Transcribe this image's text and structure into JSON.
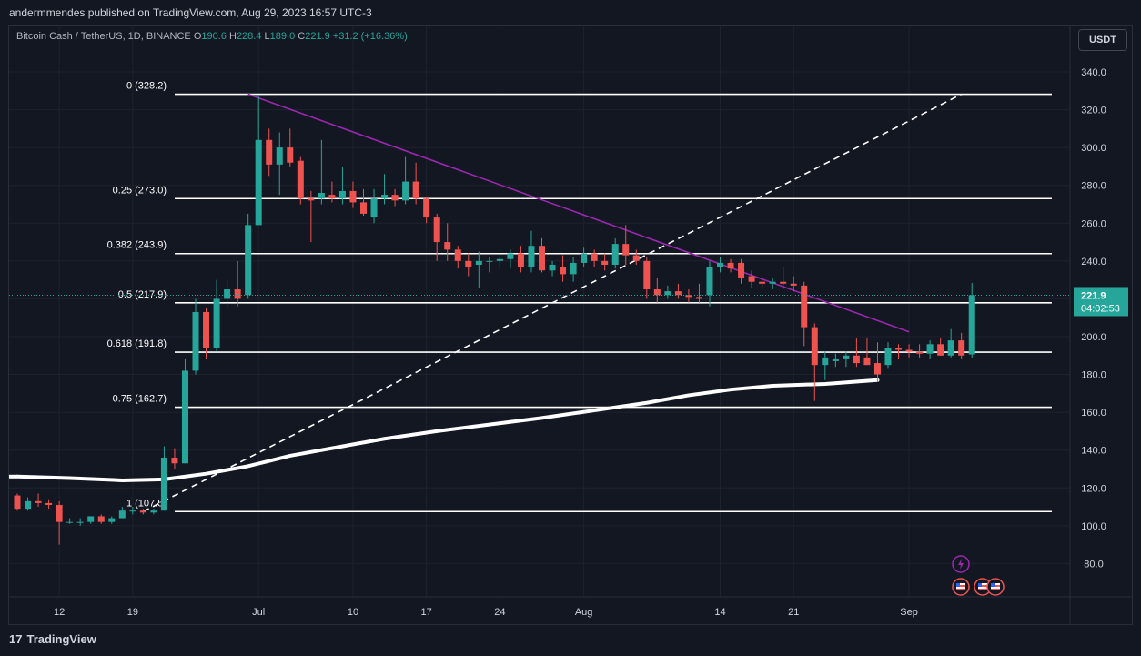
{
  "header": {
    "published": "andermmendes published on TradingView.com, Aug 29, 2023 16:57 UTC-3"
  },
  "legend": {
    "symbol": "Bitcoin Cash / TetherUS, 1D, BINANCE",
    "o_label": "O",
    "o": "190.6",
    "h_label": "H",
    "h": "228.4",
    "l_label": "L",
    "l": "189.0",
    "c_label": "C",
    "c": "221.9",
    "change": "+31.2 (+16.36%)"
  },
  "currency_button": "USDT",
  "footer": {
    "brand": "TradingView",
    "logo_text": "17"
  },
  "colors": {
    "background": "#131722",
    "up": "#26a69a",
    "down": "#ef5350",
    "fib_lines": "#ffffff",
    "trendline": "#9c27b0",
    "moving_average": "#ffffff",
    "price_tag": "#26a69a"
  },
  "chart_data": {
    "type": "candlestick",
    "y_axis": {
      "ticks": [
        80,
        100,
        120,
        140,
        160,
        180,
        200,
        220,
        240,
        260,
        280,
        300,
        320,
        340
      ],
      "tick_labels": [
        "80.0",
        "100.0",
        "120.0",
        "140.0",
        "160.0",
        "180.0",
        "200.0",
        "220.0",
        "240.0",
        "260.0",
        "280.0",
        "300.0",
        "320.0",
        "340.0"
      ]
    },
    "x_axis": {
      "ticks": [
        {
          "date": "2023-06-12",
          "label": "12"
        },
        {
          "date": "2023-06-19",
          "label": "19"
        },
        {
          "date": "2023-07-01",
          "label": "Jul"
        },
        {
          "date": "2023-07-10",
          "label": "10"
        },
        {
          "date": "2023-07-17",
          "label": "17"
        },
        {
          "date": "2023-07-24",
          "label": "24"
        },
        {
          "date": "2023-08-01",
          "label": "Aug"
        },
        {
          "date": "2023-08-14",
          "label": "14"
        },
        {
          "date": "2023-08-21",
          "label": "21"
        },
        {
          "date": "2023-09-01",
          "label": "Sep"
        }
      ]
    },
    "last_price": {
      "value": 221.9,
      "label": "221.9",
      "countdown": "04:02:53"
    },
    "fib_levels": [
      {
        "ratio": 0,
        "price": 328.2,
        "label": "0 (328.2)"
      },
      {
        "ratio": 0.25,
        "price": 273.0,
        "label": "0.25 (273.0)"
      },
      {
        "ratio": 0.382,
        "price": 243.9,
        "label": "0.382 (243.9)"
      },
      {
        "ratio": 0.5,
        "price": 217.9,
        "label": "0.5 (217.9)"
      },
      {
        "ratio": 0.618,
        "price": 191.8,
        "label": "0.618 (191.8)"
      },
      {
        "ratio": 0.75,
        "price": 162.7,
        "label": "0.75 (162.7)"
      },
      {
        "ratio": 1,
        "price": 107.5,
        "label": "1 (107.5)"
      }
    ],
    "trendline": {
      "start": {
        "date": "2023-06-30",
        "price": 328.2
      },
      "end": {
        "date": "2023-09-01",
        "price": 202.5
      }
    },
    "diagonal_dashed": {
      "start": {
        "date": "2023-06-20",
        "price": 107.5
      },
      "end": {
        "date": "2023-09-06",
        "price": 328.2
      }
    },
    "moving_average": [
      {
        "date": "2023-06-08",
        "value": 126
      },
      {
        "date": "2023-06-13",
        "value": 125.2
      },
      {
        "date": "2023-06-18",
        "value": 124.0
      },
      {
        "date": "2023-06-22",
        "value": 124.5
      },
      {
        "date": "2023-06-26",
        "value": 127.5
      },
      {
        "date": "2023-06-30",
        "value": 131.5
      },
      {
        "date": "2023-07-04",
        "value": 137.0
      },
      {
        "date": "2023-07-08",
        "value": 141.0
      },
      {
        "date": "2023-07-13",
        "value": 146.0
      },
      {
        "date": "2023-07-18",
        "value": 150.0
      },
      {
        "date": "2023-07-23",
        "value": 153.5
      },
      {
        "date": "2023-07-28",
        "value": 157.0
      },
      {
        "date": "2023-08-02",
        "value": 161.0
      },
      {
        "date": "2023-08-07",
        "value": 165.0
      },
      {
        "date": "2023-08-11",
        "value": 169.0
      },
      {
        "date": "2023-08-15",
        "value": 172.0
      },
      {
        "date": "2023-08-19",
        "value": 174.0
      },
      {
        "date": "2023-08-24",
        "value": 175.0
      },
      {
        "date": "2023-08-29",
        "value": 177.0
      }
    ],
    "candles": [
      {
        "date": "2023-06-08",
        "o": 116,
        "h": 117,
        "l": 108,
        "c": 109
      },
      {
        "date": "2023-06-09",
        "o": 109,
        "h": 115,
        "l": 108,
        "c": 113
      },
      {
        "date": "2023-06-10",
        "o": 113,
        "h": 117,
        "l": 110,
        "c": 112
      },
      {
        "date": "2023-06-11",
        "o": 112,
        "h": 114,
        "l": 109,
        "c": 111
      },
      {
        "date": "2023-06-12",
        "o": 111,
        "h": 113,
        "l": 90,
        "c": 102
      },
      {
        "date": "2023-06-13",
        "o": 102,
        "h": 104,
        "l": 101,
        "c": 102
      },
      {
        "date": "2023-06-14",
        "o": 102,
        "h": 104,
        "l": 100,
        "c": 102
      },
      {
        "date": "2023-06-15",
        "o": 102,
        "h": 105,
        "l": 101,
        "c": 105
      },
      {
        "date": "2023-06-16",
        "o": 105,
        "h": 106,
        "l": 101,
        "c": 102
      },
      {
        "date": "2023-06-17",
        "o": 102,
        "h": 105,
        "l": 101,
        "c": 104
      },
      {
        "date": "2023-06-18",
        "o": 104,
        "h": 110,
        "l": 104,
        "c": 108
      },
      {
        "date": "2023-06-19",
        "o": 108,
        "h": 110,
        "l": 106,
        "c": 108
      },
      {
        "date": "2023-06-20",
        "o": 108,
        "h": 109,
        "l": 106,
        "c": 107
      },
      {
        "date": "2023-06-21",
        "o": 107,
        "h": 109,
        "l": 106,
        "c": 108
      },
      {
        "date": "2023-06-22",
        "o": 108,
        "h": 142,
        "l": 108,
        "c": 136
      },
      {
        "date": "2023-06-23",
        "o": 136,
        "h": 141,
        "l": 130,
        "c": 133
      },
      {
        "date": "2023-06-24",
        "o": 133,
        "h": 188,
        "l": 133,
        "c": 182
      },
      {
        "date": "2023-06-25",
        "o": 182,
        "h": 220,
        "l": 180,
        "c": 213
      },
      {
        "date": "2023-06-26",
        "o": 213,
        "h": 215,
        "l": 188,
        "c": 194
      },
      {
        "date": "2023-06-27",
        "o": 194,
        "h": 230,
        "l": 192,
        "c": 220
      },
      {
        "date": "2023-06-28",
        "o": 220,
        "h": 230,
        "l": 215,
        "c": 225
      },
      {
        "date": "2023-06-29",
        "o": 225,
        "h": 240,
        "l": 216,
        "c": 220
      },
      {
        "date": "2023-06-30",
        "o": 222,
        "h": 265,
        "l": 220,
        "c": 259
      },
      {
        "date": "2023-07-01",
        "o": 259,
        "h": 328,
        "l": 259,
        "c": 304
      },
      {
        "date": "2023-07-02",
        "o": 304,
        "h": 310,
        "l": 285,
        "c": 291
      },
      {
        "date": "2023-07-03",
        "o": 291,
        "h": 308,
        "l": 275,
        "c": 300
      },
      {
        "date": "2023-07-04",
        "o": 300,
        "h": 310,
        "l": 290,
        "c": 292
      },
      {
        "date": "2023-07-05",
        "o": 293,
        "h": 295,
        "l": 270,
        "c": 273
      },
      {
        "date": "2023-07-06",
        "o": 273,
        "h": 277,
        "l": 250,
        "c": 272
      },
      {
        "date": "2023-07-07",
        "o": 273,
        "h": 304,
        "l": 270,
        "c": 276
      },
      {
        "date": "2023-07-08",
        "o": 275,
        "h": 282,
        "l": 271,
        "c": 273
      },
      {
        "date": "2023-07-09",
        "o": 273,
        "h": 290,
        "l": 270,
        "c": 277
      },
      {
        "date": "2023-07-10",
        "o": 277,
        "h": 282,
        "l": 268,
        "c": 271
      },
      {
        "date": "2023-07-11",
        "o": 271,
        "h": 278,
        "l": 264,
        "c": 265
      },
      {
        "date": "2023-07-12",
        "o": 263,
        "h": 278,
        "l": 260,
        "c": 273
      },
      {
        "date": "2023-07-13",
        "o": 273,
        "h": 286,
        "l": 270,
        "c": 275
      },
      {
        "date": "2023-07-14",
        "o": 275,
        "h": 278,
        "l": 269,
        "c": 272
      },
      {
        "date": "2023-07-15",
        "o": 272,
        "h": 295,
        "l": 270,
        "c": 282
      },
      {
        "date": "2023-07-16",
        "o": 282,
        "h": 292,
        "l": 270,
        "c": 273
      },
      {
        "date": "2023-07-17",
        "o": 273,
        "h": 274,
        "l": 260,
        "c": 263
      },
      {
        "date": "2023-07-18",
        "o": 263,
        "h": 265,
        "l": 240,
        "c": 250
      },
      {
        "date": "2023-07-19",
        "o": 250,
        "h": 260,
        "l": 240,
        "c": 246
      },
      {
        "date": "2023-07-20",
        "o": 246,
        "h": 248,
        "l": 236,
        "c": 240
      },
      {
        "date": "2023-07-21",
        "o": 240,
        "h": 244,
        "l": 232,
        "c": 237
      },
      {
        "date": "2023-07-22",
        "o": 238,
        "h": 245,
        "l": 226,
        "c": 240
      },
      {
        "date": "2023-07-23",
        "o": 240,
        "h": 242,
        "l": 234,
        "c": 240
      },
      {
        "date": "2023-07-24",
        "o": 240,
        "h": 244,
        "l": 236,
        "c": 241
      },
      {
        "date": "2023-07-25",
        "o": 241,
        "h": 246,
        "l": 236,
        "c": 244
      },
      {
        "date": "2023-07-26",
        "o": 244,
        "h": 248,
        "l": 234,
        "c": 237
      },
      {
        "date": "2023-07-27",
        "o": 237,
        "h": 256,
        "l": 234,
        "c": 248
      },
      {
        "date": "2023-07-28",
        "o": 248,
        "h": 252,
        "l": 234,
        "c": 235
      },
      {
        "date": "2023-07-29",
        "o": 235,
        "h": 240,
        "l": 232,
        "c": 238
      },
      {
        "date": "2023-07-30",
        "o": 237,
        "h": 243,
        "l": 229,
        "c": 233
      },
      {
        "date": "2023-07-31",
        "o": 233,
        "h": 242,
        "l": 229,
        "c": 239
      },
      {
        "date": "2023-08-01",
        "o": 239,
        "h": 247,
        "l": 237,
        "c": 244
      },
      {
        "date": "2023-08-02",
        "o": 244,
        "h": 246,
        "l": 237,
        "c": 240
      },
      {
        "date": "2023-08-03",
        "o": 240,
        "h": 244,
        "l": 235,
        "c": 238
      },
      {
        "date": "2023-08-04",
        "o": 238,
        "h": 252,
        "l": 236,
        "c": 249
      },
      {
        "date": "2023-08-05",
        "o": 249,
        "h": 259,
        "l": 238,
        "c": 243
      },
      {
        "date": "2023-08-06",
        "o": 243,
        "h": 246,
        "l": 238,
        "c": 240
      },
      {
        "date": "2023-08-07",
        "o": 240,
        "h": 242,
        "l": 220,
        "c": 225
      },
      {
        "date": "2023-08-08",
        "o": 225,
        "h": 231,
        "l": 218,
        "c": 222
      },
      {
        "date": "2023-08-09",
        "o": 222,
        "h": 227,
        "l": 220,
        "c": 224
      },
      {
        "date": "2023-08-10",
        "o": 224,
        "h": 228,
        "l": 220,
        "c": 222
      },
      {
        "date": "2023-08-11",
        "o": 222,
        "h": 225,
        "l": 218,
        "c": 221
      },
      {
        "date": "2023-08-12",
        "o": 221,
        "h": 228,
        "l": 218,
        "c": 220
      },
      {
        "date": "2023-08-13",
        "o": 222,
        "h": 240,
        "l": 216,
        "c": 237
      },
      {
        "date": "2023-08-14",
        "o": 237,
        "h": 242,
        "l": 234,
        "c": 239
      },
      {
        "date": "2023-08-15",
        "o": 239,
        "h": 241,
        "l": 234,
        "c": 236
      },
      {
        "date": "2023-08-16",
        "o": 239,
        "h": 241,
        "l": 228,
        "c": 231
      },
      {
        "date": "2023-08-17",
        "o": 232,
        "h": 235,
        "l": 226,
        "c": 229
      },
      {
        "date": "2023-08-18",
        "o": 229,
        "h": 231,
        "l": 226,
        "c": 228
      },
      {
        "date": "2023-08-19",
        "o": 228,
        "h": 231,
        "l": 225,
        "c": 229
      },
      {
        "date": "2023-08-20",
        "o": 229,
        "h": 237,
        "l": 225,
        "c": 228
      },
      {
        "date": "2023-08-21",
        "o": 228,
        "h": 232,
        "l": 224,
        "c": 227
      },
      {
        "date": "2023-08-22",
        "o": 227,
        "h": 229,
        "l": 195,
        "c": 205
      },
      {
        "date": "2023-08-23",
        "o": 205,
        "h": 207,
        "l": 166,
        "c": 185
      },
      {
        "date": "2023-08-24",
        "o": 185,
        "h": 192,
        "l": 177,
        "c": 189
      },
      {
        "date": "2023-08-25",
        "o": 187,
        "h": 191,
        "l": 184,
        "c": 188
      },
      {
        "date": "2023-08-26",
        "o": 188,
        "h": 192,
        "l": 184,
        "c": 190
      },
      {
        "date": "2023-08-27",
        "o": 190,
        "h": 199,
        "l": 184,
        "c": 186
      },
      {
        "date": "2023-08-28",
        "o": 189,
        "h": 199,
        "l": 185,
        "c": 185
      },
      {
        "date": "2023-08-29",
        "o": 186,
        "h": 197,
        "l": 176,
        "c": 180
      },
      {
        "date": "2023-08-30",
        "o": 185,
        "h": 197,
        "l": 183,
        "c": 194
      },
      {
        "date": "2023-08-31",
        "o": 194,
        "h": 196,
        "l": 188,
        "c": 193
      },
      {
        "date": "2023-09-01",
        "o": 193,
        "h": 196,
        "l": 189,
        "c": 192
      },
      {
        "date": "2023-09-02",
        "o": 192,
        "h": 196,
        "l": 189,
        "c": 191
      },
      {
        "date": "2023-09-03",
        "o": 191,
        "h": 198,
        "l": 188,
        "c": 196
      },
      {
        "date": "2023-09-04",
        "o": 196,
        "h": 199,
        "l": 190,
        "c": 190
      },
      {
        "date": "2023-09-05",
        "o": 190,
        "h": 204,
        "l": 189,
        "c": 198
      },
      {
        "date": "2023-09-06",
        "o": 198,
        "h": 202,
        "l": 188,
        "c": 190
      },
      {
        "date": "2023-09-07",
        "o": 190.6,
        "h": 228.4,
        "l": 189.0,
        "c": 221.9
      }
    ],
    "event_icons": [
      "flash-icon",
      "us-flag-icon",
      "us-flag-icon",
      "us-flag-icon"
    ]
  }
}
